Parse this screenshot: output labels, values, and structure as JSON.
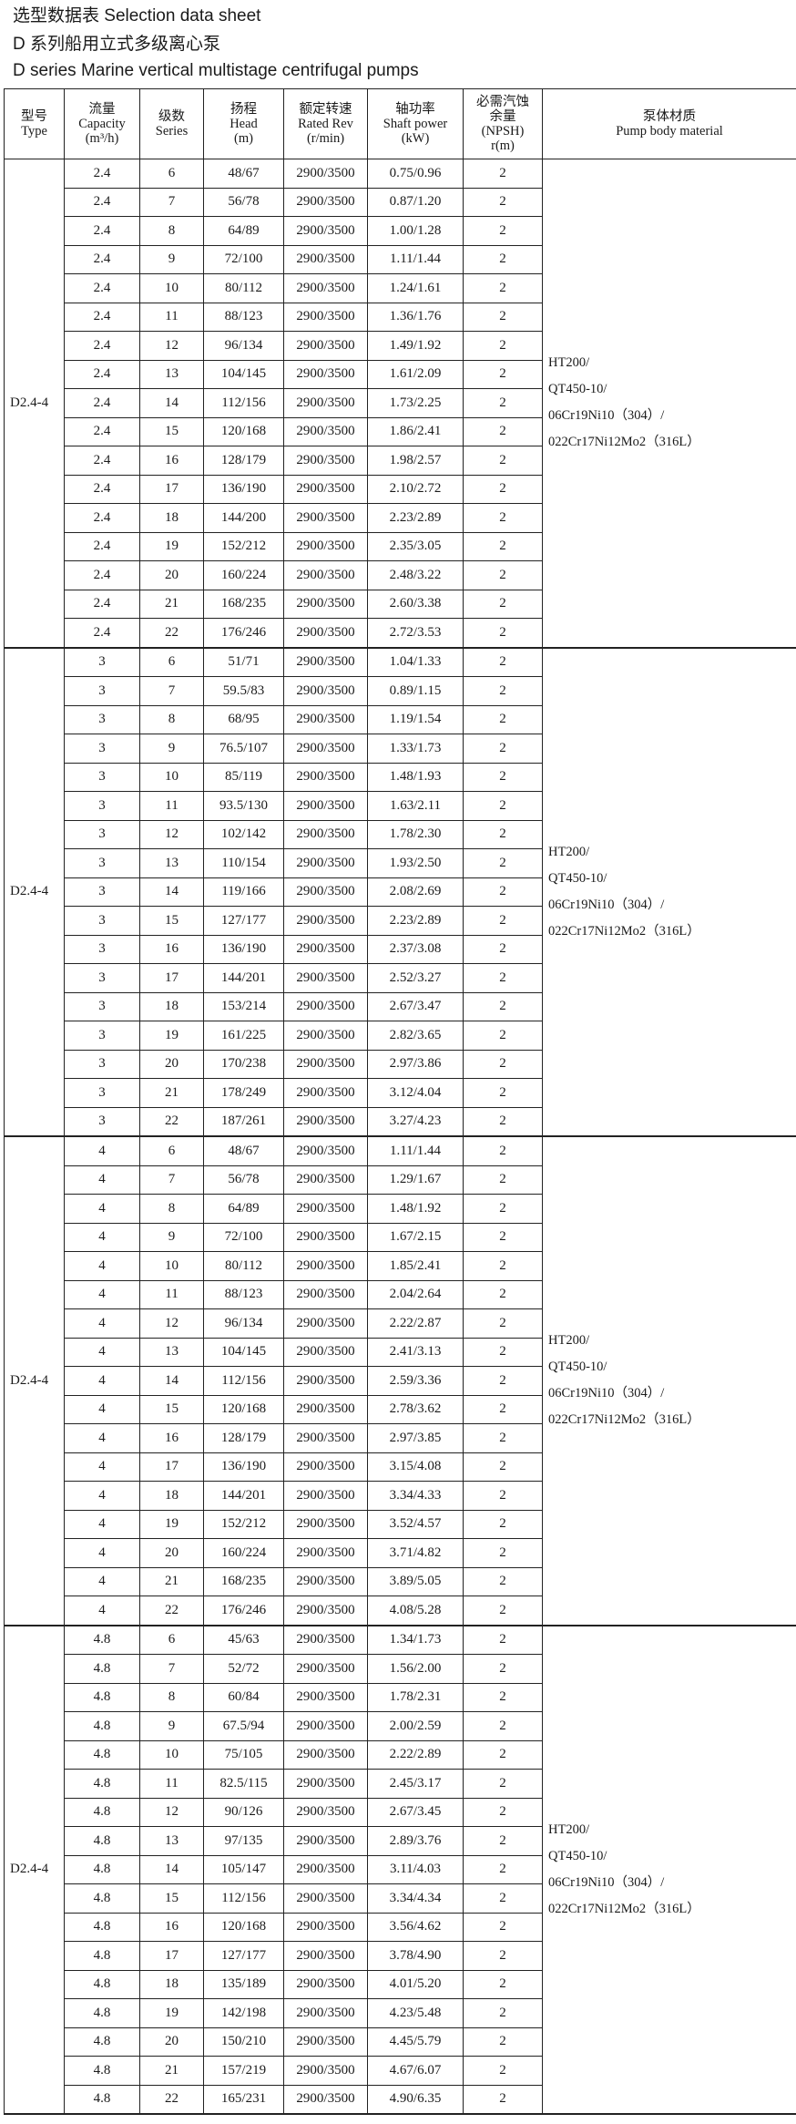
{
  "titles": {
    "line1": "选型数据表  Selection data sheet",
    "line2": "D 系列船用立式多级离心泵",
    "line3": "D series Marine vertical multistage centrifugal pumps"
  },
  "headers": [
    [
      "型号",
      "Type"
    ],
    [
      "流量",
      "Capacity",
      "(m³/h)"
    ],
    [
      "级数",
      "Series"
    ],
    [
      "扬程",
      "Head",
      "(m)"
    ],
    [
      "额定转速",
      "Rated Rev",
      "(r/min)"
    ],
    [
      "轴功率",
      "Shaft power",
      "(kW)"
    ],
    [
      "必需汽蚀",
      "余量",
      "(NPSH)",
      "r(m)"
    ],
    [
      "泵体材质",
      "Pump body material"
    ]
  ],
  "groups": [
    {
      "type": "D2.4-4",
      "material": [
        "HT200/",
        "QT450-10/",
        "06Cr19Ni10（304）/",
        "022Cr17Ni12Mo2（316L）"
      ],
      "rows": [
        [
          "2.4",
          "6",
          "48/67",
          "2900/3500",
          "0.75/0.96",
          "2"
        ],
        [
          "2.4",
          "7",
          "56/78",
          "2900/3500",
          "0.87/1.20",
          "2"
        ],
        [
          "2.4",
          "8",
          "64/89",
          "2900/3500",
          "1.00/1.28",
          "2"
        ],
        [
          "2.4",
          "9",
          "72/100",
          "2900/3500",
          "1.11/1.44",
          "2"
        ],
        [
          "2.4",
          "10",
          "80/112",
          "2900/3500",
          "1.24/1.61",
          "2"
        ],
        [
          "2.4",
          "11",
          "88/123",
          "2900/3500",
          "1.36/1.76",
          "2"
        ],
        [
          "2.4",
          "12",
          "96/134",
          "2900/3500",
          "1.49/1.92",
          "2"
        ],
        [
          "2.4",
          "13",
          "104/145",
          "2900/3500",
          "1.61/2.09",
          "2"
        ],
        [
          "2.4",
          "14",
          "112/156",
          "2900/3500",
          "1.73/2.25",
          "2"
        ],
        [
          "2.4",
          "15",
          "120/168",
          "2900/3500",
          "1.86/2.41",
          "2"
        ],
        [
          "2.4",
          "16",
          "128/179",
          "2900/3500",
          "1.98/2.57",
          "2"
        ],
        [
          "2.4",
          "17",
          "136/190",
          "2900/3500",
          "2.10/2.72",
          "2"
        ],
        [
          "2.4",
          "18",
          "144/200",
          "2900/3500",
          "2.23/2.89",
          "2"
        ],
        [
          "2.4",
          "19",
          "152/212",
          "2900/3500",
          "2.35/3.05",
          "2"
        ],
        [
          "2.4",
          "20",
          "160/224",
          "2900/3500",
          "2.48/3.22",
          "2"
        ],
        [
          "2.4",
          "21",
          "168/235",
          "2900/3500",
          "2.60/3.38",
          "2"
        ],
        [
          "2.4",
          "22",
          "176/246",
          "2900/3500",
          "2.72/3.53",
          "2"
        ]
      ]
    },
    {
      "type": "D2.4-4",
      "material": [
        "HT200/",
        "QT450-10/",
        "06Cr19Ni10（304）/",
        "022Cr17Ni12Mo2（316L）"
      ],
      "rows": [
        [
          "3",
          "6",
          "51/71",
          "2900/3500",
          "1.04/1.33",
          "2"
        ],
        [
          "3",
          "7",
          "59.5/83",
          "2900/3500",
          "0.89/1.15",
          "2"
        ],
        [
          "3",
          "8",
          "68/95",
          "2900/3500",
          "1.19/1.54",
          "2"
        ],
        [
          "3",
          "9",
          "76.5/107",
          "2900/3500",
          "1.33/1.73",
          "2"
        ],
        [
          "3",
          "10",
          "85/119",
          "2900/3500",
          "1.48/1.93",
          "2"
        ],
        [
          "3",
          "11",
          "93.5/130",
          "2900/3500",
          "1.63/2.11",
          "2"
        ],
        [
          "3",
          "12",
          "102/142",
          "2900/3500",
          "1.78/2.30",
          "2"
        ],
        [
          "3",
          "13",
          "110/154",
          "2900/3500",
          "1.93/2.50",
          "2"
        ],
        [
          "3",
          "14",
          "119/166",
          "2900/3500",
          "2.08/2.69",
          "2"
        ],
        [
          "3",
          "15",
          "127/177",
          "2900/3500",
          "2.23/2.89",
          "2"
        ],
        [
          "3",
          "16",
          "136/190",
          "2900/3500",
          "2.37/3.08",
          "2"
        ],
        [
          "3",
          "17",
          "144/201",
          "2900/3500",
          "2.52/3.27",
          "2"
        ],
        [
          "3",
          "18",
          "153/214",
          "2900/3500",
          "2.67/3.47",
          "2"
        ],
        [
          "3",
          "19",
          "161/225",
          "2900/3500",
          "2.82/3.65",
          "2"
        ],
        [
          "3",
          "20",
          "170/238",
          "2900/3500",
          "2.97/3.86",
          "2"
        ],
        [
          "3",
          "21",
          "178/249",
          "2900/3500",
          "3.12/4.04",
          "2"
        ],
        [
          "3",
          "22",
          "187/261",
          "2900/3500",
          "3.27/4.23",
          "2"
        ]
      ]
    },
    {
      "type": "D2.4-4",
      "material": [
        "HT200/",
        "QT450-10/",
        "06Cr19Ni10（304）/",
        "022Cr17Ni12Mo2（316L）"
      ],
      "rows": [
        [
          "4",
          "6",
          "48/67",
          "2900/3500",
          "1.11/1.44",
          "2"
        ],
        [
          "4",
          "7",
          "56/78",
          "2900/3500",
          "1.29/1.67",
          "2"
        ],
        [
          "4",
          "8",
          "64/89",
          "2900/3500",
          "1.48/1.92",
          "2"
        ],
        [
          "4",
          "9",
          "72/100",
          "2900/3500",
          "1.67/2.15",
          "2"
        ],
        [
          "4",
          "10",
          "80/112",
          "2900/3500",
          "1.85/2.41",
          "2"
        ],
        [
          "4",
          "11",
          "88/123",
          "2900/3500",
          "2.04/2.64",
          "2"
        ],
        [
          "4",
          "12",
          "96/134",
          "2900/3500",
          "2.22/2.87",
          "2"
        ],
        [
          "4",
          "13",
          "104/145",
          "2900/3500",
          "2.41/3.13",
          "2"
        ],
        [
          "4",
          "14",
          "112/156",
          "2900/3500",
          "2.59/3.36",
          "2"
        ],
        [
          "4",
          "15",
          "120/168",
          "2900/3500",
          "2.78/3.62",
          "2"
        ],
        [
          "4",
          "16",
          "128/179",
          "2900/3500",
          "2.97/3.85",
          "2"
        ],
        [
          "4",
          "17",
          "136/190",
          "2900/3500",
          "3.15/4.08",
          "2"
        ],
        [
          "4",
          "18",
          "144/201",
          "2900/3500",
          "3.34/4.33",
          "2"
        ],
        [
          "4",
          "19",
          "152/212",
          "2900/3500",
          "3.52/4.57",
          "2"
        ],
        [
          "4",
          "20",
          "160/224",
          "2900/3500",
          "3.71/4.82",
          "2"
        ],
        [
          "4",
          "21",
          "168/235",
          "2900/3500",
          "3.89/5.05",
          "2"
        ],
        [
          "4",
          "22",
          "176/246",
          "2900/3500",
          "4.08/5.28",
          "2"
        ]
      ]
    },
    {
      "type": "D2.4-4",
      "material": [
        "HT200/",
        "QT450-10/",
        "06Cr19Ni10（304）/",
        "022Cr17Ni12Mo2（316L）"
      ],
      "rows": [
        [
          "4.8",
          "6",
          "45/63",
          "2900/3500",
          "1.34/1.73",
          "2"
        ],
        [
          "4.8",
          "7",
          "52/72",
          "2900/3500",
          "1.56/2.00",
          "2"
        ],
        [
          "4.8",
          "8",
          "60/84",
          "2900/3500",
          "1.78/2.31",
          "2"
        ],
        [
          "4.8",
          "9",
          "67.5/94",
          "2900/3500",
          "2.00/2.59",
          "2"
        ],
        [
          "4.8",
          "10",
          "75/105",
          "2900/3500",
          "2.22/2.89",
          "2"
        ],
        [
          "4.8",
          "11",
          "82.5/115",
          "2900/3500",
          "2.45/3.17",
          "2"
        ],
        [
          "4.8",
          "12",
          "90/126",
          "2900/3500",
          "2.67/3.45",
          "2"
        ],
        [
          "4.8",
          "13",
          "97/135",
          "2900/3500",
          "2.89/3.76",
          "2"
        ],
        [
          "4.8",
          "14",
          "105/147",
          "2900/3500",
          "3.11/4.03",
          "2"
        ],
        [
          "4.8",
          "15",
          "112/156",
          "2900/3500",
          "3.34/4.34",
          "2"
        ],
        [
          "4.8",
          "16",
          "120/168",
          "2900/3500",
          "3.56/4.62",
          "2"
        ],
        [
          "4.8",
          "17",
          "127/177",
          "2900/3500",
          "3.78/4.90",
          "2"
        ],
        [
          "4.8",
          "18",
          "135/189",
          "2900/3500",
          "4.01/5.20",
          "2"
        ],
        [
          "4.8",
          "19",
          "142/198",
          "2900/3500",
          "4.23/5.48",
          "2"
        ],
        [
          "4.8",
          "20",
          "150/210",
          "2900/3500",
          "4.45/5.79",
          "2"
        ],
        [
          "4.8",
          "21",
          "157/219",
          "2900/3500",
          "4.67/6.07",
          "2"
        ],
        [
          "4.8",
          "22",
          "165/231",
          "2900/3500",
          "4.90/6.35",
          "2"
        ]
      ]
    }
  ]
}
